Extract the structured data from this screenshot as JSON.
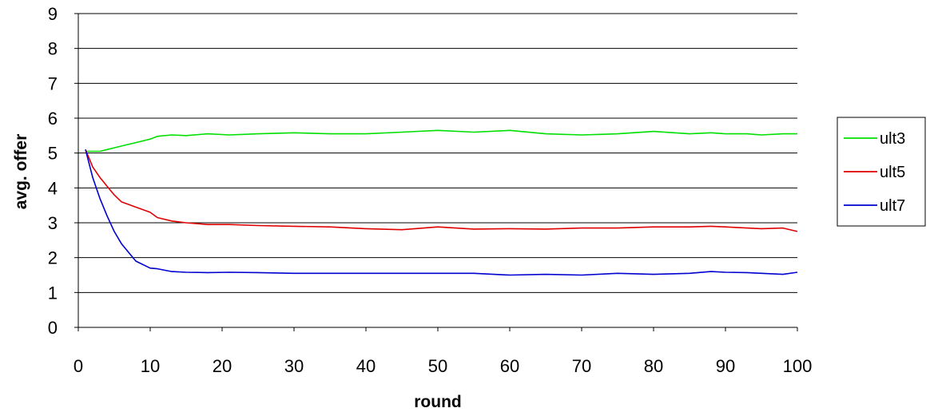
{
  "chart_data": {
    "type": "line",
    "title": "",
    "xlabel": "round",
    "ylabel": "avg. offer",
    "xlim": [
      0,
      100
    ],
    "ylim": [
      0,
      9
    ],
    "xticks": [
      "0",
      "10",
      "20",
      "30",
      "40",
      "50",
      "60",
      "70",
      "80",
      "90",
      "100"
    ],
    "yticks": [
      "0",
      "1",
      "2",
      "3",
      "4",
      "5",
      "6",
      "7",
      "8",
      "9"
    ],
    "grid": "horizontal",
    "legend_position": "right",
    "x": [
      1,
      2,
      3,
      4,
      5,
      6,
      8,
      10,
      11,
      13,
      15,
      18,
      21,
      25,
      30,
      35,
      40,
      45,
      50,
      55,
      60,
      65,
      70,
      75,
      80,
      85,
      88,
      90,
      93,
      95,
      98,
      100
    ],
    "series": [
      {
        "name": "ult3",
        "color": "#00e000",
        "values": [
          5.05,
          5.05,
          5.05,
          5.1,
          5.15,
          5.2,
          5.3,
          5.4,
          5.48,
          5.52,
          5.5,
          5.55,
          5.52,
          5.55,
          5.58,
          5.55,
          5.55,
          5.6,
          5.65,
          5.6,
          5.65,
          5.55,
          5.52,
          5.55,
          5.62,
          5.55,
          5.58,
          5.55,
          5.55,
          5.52,
          5.55,
          5.55
        ]
      },
      {
        "name": "ult5",
        "color": "#e00000",
        "values": [
          5.1,
          4.6,
          4.3,
          4.05,
          3.8,
          3.6,
          3.45,
          3.3,
          3.15,
          3.05,
          3.0,
          2.95,
          2.95,
          2.92,
          2.9,
          2.88,
          2.83,
          2.8,
          2.88,
          2.82,
          2.83,
          2.82,
          2.85,
          2.85,
          2.88,
          2.88,
          2.9,
          2.88,
          2.85,
          2.83,
          2.85,
          2.75
        ]
      },
      {
        "name": "ult7",
        "color": "#0000d0",
        "values": [
          5.1,
          4.3,
          3.7,
          3.2,
          2.75,
          2.4,
          1.9,
          1.7,
          1.68,
          1.6,
          1.58,
          1.57,
          1.58,
          1.57,
          1.55,
          1.55,
          1.55,
          1.55,
          1.55,
          1.55,
          1.5,
          1.52,
          1.5,
          1.55,
          1.52,
          1.55,
          1.6,
          1.58,
          1.57,
          1.55,
          1.52,
          1.58
        ]
      }
    ]
  }
}
